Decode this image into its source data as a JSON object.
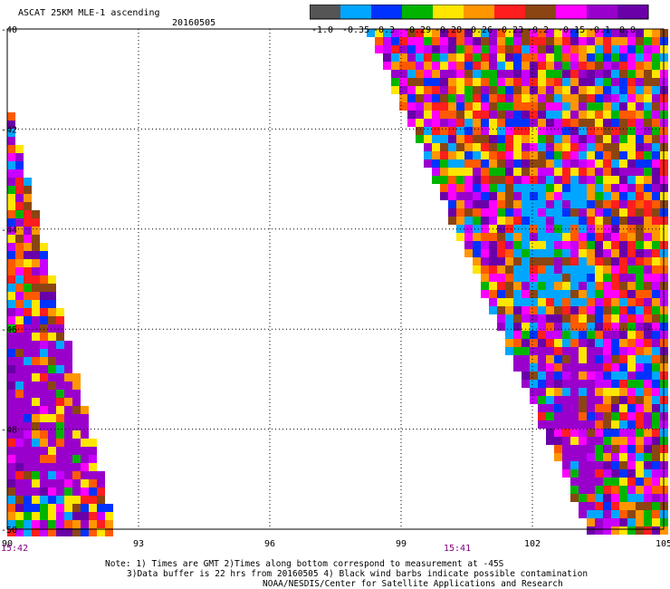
{
  "title": "ASCAT 25KM MLE-1 ascending",
  "date": "20160505",
  "legend": {
    "labels": [
      "-1.0",
      "-0.35",
      "-0.3",
      "-0.29",
      "-0.28",
      "-0.26",
      "-0.23",
      "-0.2",
      "-0.15",
      "-0.1",
      "0.0"
    ],
    "colors": [
      "#555555",
      "#00a6ff",
      "#0032ff",
      "#00b400",
      "#ffe600",
      "#ff9600",
      "#ff1e1e",
      "#8b4513",
      "#ff00ff",
      "#9900cc",
      "#6a00a8"
    ]
  },
  "axes": {
    "x_ticks": [
      "90",
      "93",
      "96",
      "99",
      "102",
      "105"
    ],
    "y_ticks": [
      "-40",
      "-42",
      "-44",
      "-46",
      "-48",
      "-50"
    ],
    "x_range": [
      90,
      105
    ],
    "y_range": [
      -50,
      -40
    ]
  },
  "time_labels": [
    {
      "text": "15:42"
    },
    {
      "text": "15:41"
    }
  ],
  "notes": [
    "Note: 1) Times are GMT 2)Times along bottom correspond to measurement at -45S",
    "3)Data buffer is 22 hrs from 20160505 4) Black wind barbs indicate possible contamination",
    "NOAA/NESDIS/Center for Satellite Applications and Research"
  ]
}
